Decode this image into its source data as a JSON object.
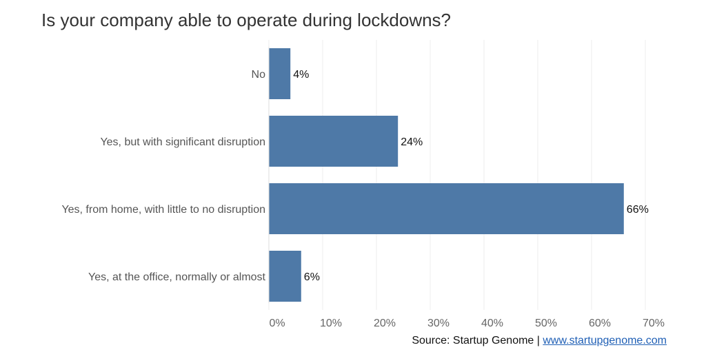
{
  "chart_data": {
    "type": "bar",
    "orientation": "horizontal",
    "title": "Is your company able to operate during lockdowns?",
    "categories": [
      "No",
      "Yes, but with significant disruption",
      "Yes, from home, with little to no disruption",
      "Yes, at the office, normally or almost"
    ],
    "values": [
      4,
      24,
      66,
      6
    ],
    "value_labels": [
      "4%",
      "24%",
      "66%",
      "6%"
    ],
    "x_ticks": [
      "0%",
      "10%",
      "20%",
      "30%",
      "40%",
      "50%",
      "60%",
      "70%"
    ],
    "xlim": [
      0,
      70
    ],
    "grid": true,
    "bar_color": "#4e79a7"
  },
  "source": {
    "prefix": "Source: Startup Genome | ",
    "link_text": "www.startupgenome.com",
    "link_color": "#1f5fb5"
  }
}
